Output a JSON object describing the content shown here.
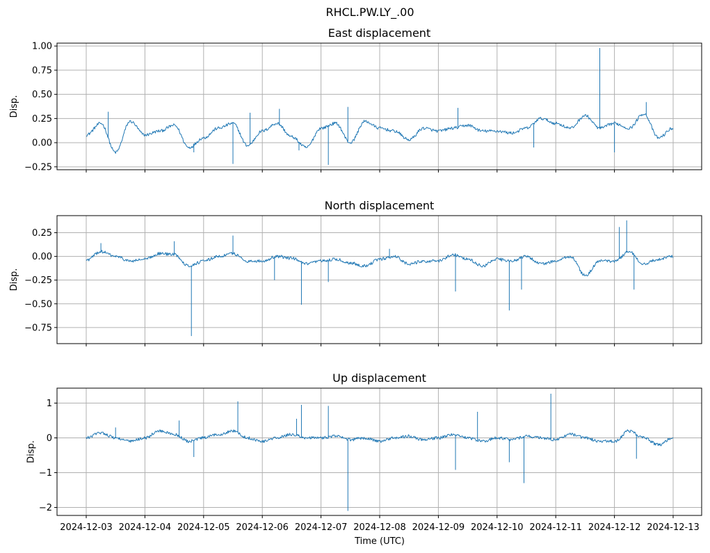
{
  "suptitle": "RHCL.PW.LY_.00",
  "xlabel": "Time (UTC)",
  "x_ticks": [
    "2024-12-03",
    "2024-12-04",
    "2024-12-05",
    "2024-12-06",
    "2024-12-07",
    "2024-12-08",
    "2024-12-09",
    "2024-12-10",
    "2024-12-11",
    "2024-12-12",
    "2024-12-13"
  ],
  "line_color": "#1f77b4",
  "chart_data": [
    {
      "type": "line",
      "title": "East displacement",
      "ylabel": "Disp.",
      "xlim": [
        "2024-12-03",
        "2024-12-13"
      ],
      "ylim": [
        -0.28,
        1.03
      ],
      "yticks": [
        -0.25,
        0.0,
        0.25,
        0.5,
        0.75,
        1.0
      ],
      "ytick_labels": [
        "−0.25",
        "0.00",
        "0.25",
        "0.50",
        "0.75",
        "1.00"
      ],
      "grid": true,
      "series": [
        {
          "x": [
            "2024-12-03 00:00",
            "2024-12-03 06:00",
            "2024-12-03 12:00",
            "2024-12-03 18:00",
            "2024-12-04 00:00",
            "2024-12-04 06:00",
            "2024-12-04 12:00",
            "2024-12-04 18:00",
            "2024-12-05 00:00",
            "2024-12-05 06:00",
            "2024-12-05 12:00",
            "2024-12-05 18:00",
            "2024-12-06 00:00",
            "2024-12-06 06:00",
            "2024-12-06 12:00",
            "2024-12-06 18:00",
            "2024-12-07 00:00",
            "2024-12-07 06:00",
            "2024-12-07 12:00",
            "2024-12-07 18:00",
            "2024-12-08 00:00",
            "2024-12-08 06:00",
            "2024-12-08 12:00",
            "2024-12-08 18:00",
            "2024-12-09 00:00",
            "2024-12-09 06:00",
            "2024-12-09 12:00",
            "2024-12-09 18:00",
            "2024-12-10 00:00",
            "2024-12-10 06:00",
            "2024-12-10 12:00",
            "2024-12-10 18:00",
            "2024-12-11 00:00",
            "2024-12-11 06:00",
            "2024-12-11 12:00",
            "2024-12-11 18:00",
            "2024-12-12 00:00",
            "2024-12-12 06:00",
            "2024-12-12 12:00",
            "2024-12-12 18:00",
            "2024-12-13 00:00"
          ],
          "y": [
            0.08,
            0.2,
            -0.1,
            0.22,
            0.08,
            0.12,
            0.18,
            -0.05,
            0.05,
            0.15,
            0.2,
            -0.03,
            0.12,
            0.2,
            0.06,
            -0.05,
            0.15,
            0.2,
            0.0,
            0.22,
            0.15,
            0.12,
            0.03,
            0.15,
            0.12,
            0.15,
            0.18,
            0.12,
            0.12,
            0.1,
            0.15,
            0.25,
            0.2,
            0.15,
            0.28,
            0.15,
            0.2,
            0.15,
            0.3,
            0.05,
            0.15
          ],
          "spikes": [
            {
              "x": "2024-12-03 09:00",
              "y": 0.32
            },
            {
              "x": "2024-12-04 20:00",
              "y": -0.1
            },
            {
              "x": "2024-12-05 12:00",
              "y": -0.22
            },
            {
              "x": "2024-12-05 19:00",
              "y": 0.31
            },
            {
              "x": "2024-12-06 07:00",
              "y": 0.35
            },
            {
              "x": "2024-12-06 15:00",
              "y": -0.08
            },
            {
              "x": "2024-12-07 03:00",
              "y": -0.23
            },
            {
              "x": "2024-12-07 11:00",
              "y": 0.37
            },
            {
              "x": "2024-12-09 08:00",
              "y": 0.36
            },
            {
              "x": "2024-12-10 15:00",
              "y": -0.05
            },
            {
              "x": "2024-12-11 18:00",
              "y": 0.98
            },
            {
              "x": "2024-12-12 00:00",
              "y": -0.1
            },
            {
              "x": "2024-12-12 13:00",
              "y": 0.42
            }
          ]
        }
      ]
    },
    {
      "type": "line",
      "title": "North displacement",
      "ylabel": "Disp.",
      "xlim": [
        "2024-12-03",
        "2024-12-13"
      ],
      "ylim": [
        -0.92,
        0.43
      ],
      "yticks": [
        -0.75,
        -0.5,
        -0.25,
        0.0,
        0.25
      ],
      "ytick_labels": [
        "−0.75",
        "−0.50",
        "−0.25",
        "0.00",
        "0.25"
      ],
      "grid": true,
      "series": [
        {
          "x": [
            "2024-12-03 00:00",
            "2024-12-03 06:00",
            "2024-12-03 12:00",
            "2024-12-03 18:00",
            "2024-12-04 00:00",
            "2024-12-04 06:00",
            "2024-12-04 12:00",
            "2024-12-04 18:00",
            "2024-12-05 00:00",
            "2024-12-05 06:00",
            "2024-12-05 12:00",
            "2024-12-05 18:00",
            "2024-12-06 00:00",
            "2024-12-06 06:00",
            "2024-12-06 12:00",
            "2024-12-06 18:00",
            "2024-12-07 00:00",
            "2024-12-07 06:00",
            "2024-12-07 12:00",
            "2024-12-07 18:00",
            "2024-12-08 00:00",
            "2024-12-08 06:00",
            "2024-12-08 12:00",
            "2024-12-08 18:00",
            "2024-12-09 00:00",
            "2024-12-09 06:00",
            "2024-12-09 12:00",
            "2024-12-09 18:00",
            "2024-12-10 00:00",
            "2024-12-10 06:00",
            "2024-12-10 12:00",
            "2024-12-10 18:00",
            "2024-12-11 00:00",
            "2024-12-11 06:00",
            "2024-12-11 12:00",
            "2024-12-11 18:00",
            "2024-12-12 00:00",
            "2024-12-12 06:00",
            "2024-12-12 12:00",
            "2024-12-12 18:00",
            "2024-12-13 00:00"
          ],
          "y": [
            -0.04,
            0.05,
            0.0,
            -0.05,
            -0.03,
            0.03,
            0.02,
            -0.1,
            -0.05,
            0.0,
            0.03,
            -0.05,
            -0.05,
            0.0,
            -0.02,
            -0.08,
            -0.05,
            -0.03,
            -0.07,
            -0.1,
            -0.03,
            0.0,
            -0.08,
            -0.05,
            -0.05,
            0.02,
            -0.03,
            -0.1,
            -0.03,
            -0.05,
            0.0,
            -0.08,
            -0.05,
            0.0,
            -0.2,
            -0.05,
            -0.05,
            0.05,
            -0.08,
            -0.03,
            0.0
          ],
          "spikes": [
            {
              "x": "2024-12-03 06:00",
              "y": 0.14
            },
            {
              "x": "2024-12-04 12:00",
              "y": 0.16
            },
            {
              "x": "2024-12-04 19:00",
              "y": -0.84
            },
            {
              "x": "2024-12-05 12:00",
              "y": 0.22
            },
            {
              "x": "2024-12-06 05:00",
              "y": -0.25
            },
            {
              "x": "2024-12-06 16:00",
              "y": -0.51
            },
            {
              "x": "2024-12-07 03:00",
              "y": -0.27
            },
            {
              "x": "2024-12-08 04:00",
              "y": 0.08
            },
            {
              "x": "2024-12-09 07:00",
              "y": -0.37
            },
            {
              "x": "2024-12-10 05:00",
              "y": -0.57
            },
            {
              "x": "2024-12-10 10:00",
              "y": -0.35
            },
            {
              "x": "2024-12-12 02:00",
              "y": 0.31
            },
            {
              "x": "2024-12-12 05:00",
              "y": 0.38
            },
            {
              "x": "2024-12-12 08:00",
              "y": -0.35
            }
          ]
        }
      ]
    },
    {
      "type": "line",
      "title": "Up displacement",
      "ylabel": "Disp.",
      "xlim": [
        "2024-12-03",
        "2024-12-13"
      ],
      "ylim": [
        -2.23,
        1.43
      ],
      "yticks": [
        -2,
        -1,
        0,
        1
      ],
      "ytick_labels": [
        "−2",
        "−1",
        "0",
        "1"
      ],
      "grid": true,
      "series": [
        {
          "x": [
            "2024-12-03 00:00",
            "2024-12-03 06:00",
            "2024-12-03 12:00",
            "2024-12-03 18:00",
            "2024-12-04 00:00",
            "2024-12-04 06:00",
            "2024-12-04 12:00",
            "2024-12-04 18:00",
            "2024-12-05 00:00",
            "2024-12-05 06:00",
            "2024-12-05 12:00",
            "2024-12-05 18:00",
            "2024-12-06 00:00",
            "2024-12-06 06:00",
            "2024-12-06 12:00",
            "2024-12-06 18:00",
            "2024-12-07 00:00",
            "2024-12-07 06:00",
            "2024-12-07 12:00",
            "2024-12-07 18:00",
            "2024-12-08 00:00",
            "2024-12-08 06:00",
            "2024-12-08 12:00",
            "2024-12-08 18:00",
            "2024-12-09 00:00",
            "2024-12-09 06:00",
            "2024-12-09 12:00",
            "2024-12-09 18:00",
            "2024-12-10 00:00",
            "2024-12-10 06:00",
            "2024-12-10 12:00",
            "2024-12-10 18:00",
            "2024-12-11 00:00",
            "2024-12-11 06:00",
            "2024-12-11 12:00",
            "2024-12-11 18:00",
            "2024-12-12 00:00",
            "2024-12-12 06:00",
            "2024-12-12 12:00",
            "2024-12-12 18:00",
            "2024-12-13 00:00"
          ],
          "y": [
            0.0,
            0.15,
            0.0,
            -0.1,
            0.0,
            0.2,
            0.1,
            -0.1,
            0.0,
            0.1,
            0.2,
            0.0,
            -0.1,
            0.0,
            0.1,
            0.0,
            0.0,
            0.05,
            -0.05,
            0.0,
            -0.1,
            0.0,
            0.05,
            -0.05,
            0.0,
            0.1,
            0.0,
            -0.1,
            0.0,
            -0.05,
            0.05,
            0.0,
            -0.05,
            0.1,
            0.0,
            -0.1,
            -0.1,
            0.2,
            0.0,
            -0.2,
            0.0
          ],
          "spikes": [
            {
              "x": "2024-12-03 12:00",
              "y": 0.3
            },
            {
              "x": "2024-12-04 14:00",
              "y": 0.5
            },
            {
              "x": "2024-12-04 20:00",
              "y": -0.55
            },
            {
              "x": "2024-12-05 14:00",
              "y": 1.05
            },
            {
              "x": "2024-12-06 14:00",
              "y": 0.55
            },
            {
              "x": "2024-12-06 16:00",
              "y": 0.95
            },
            {
              "x": "2024-12-07 03:00",
              "y": 0.92
            },
            {
              "x": "2024-12-07 11:00",
              "y": -2.1
            },
            {
              "x": "2024-12-09 07:00",
              "y": -0.92
            },
            {
              "x": "2024-12-09 16:00",
              "y": 0.75
            },
            {
              "x": "2024-12-10 05:00",
              "y": -0.7
            },
            {
              "x": "2024-12-10 11:00",
              "y": -1.3
            },
            {
              "x": "2024-12-10 22:00",
              "y": 1.27
            },
            {
              "x": "2024-12-12 09:00",
              "y": -0.6
            }
          ]
        }
      ]
    }
  ]
}
